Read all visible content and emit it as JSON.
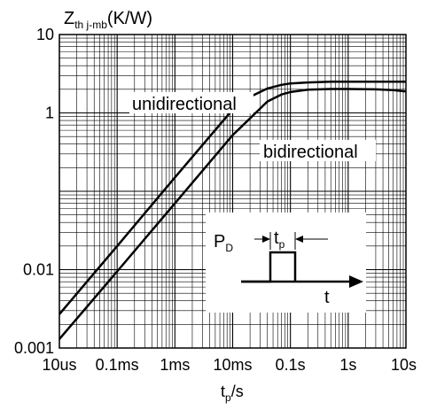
{
  "chart_data": {
    "type": "line",
    "y_axis_title": {
      "main": "Z",
      "sub": "th j-mb",
      "unit": "(K/W)"
    },
    "x_axis_title": {
      "main": "t",
      "sub": "p",
      "unit": "/s"
    },
    "x_scale": "log",
    "y_scale": "log",
    "xlim": [
      1e-05,
      10
    ],
    "ylim": [
      0.001,
      10
    ],
    "grid": true,
    "x_ticks": [
      {
        "value": 1e-05,
        "label": "10us"
      },
      {
        "value": 0.0001,
        "label": "0.1ms"
      },
      {
        "value": 0.001,
        "label": "1ms"
      },
      {
        "value": 0.01,
        "label": "10ms"
      },
      {
        "value": 0.1,
        "label": "0.1s"
      },
      {
        "value": 1,
        "label": "1s"
      },
      {
        "value": 10,
        "label": "10s"
      }
    ],
    "y_ticks": [
      {
        "value": 10,
        "label": "10"
      },
      {
        "value": 1,
        "label": "1"
      },
      {
        "value": 0.01,
        "label": "0.01"
      },
      {
        "value": 0.001,
        "label": "0.001"
      }
    ],
    "series": [
      {
        "name": "unidirectional",
        "x": [
          1e-05,
          0.0001,
          0.001,
          0.01,
          0.02,
          0.04,
          0.07,
          0.1,
          0.2,
          0.5,
          1,
          3,
          10
        ],
        "y": [
          0.0027,
          0.02,
          0.15,
          1.1,
          1.6,
          2.05,
          2.28,
          2.38,
          2.45,
          2.5,
          2.5,
          2.5,
          2.5
        ]
      },
      {
        "name": "bidirectional",
        "x": [
          1e-05,
          0.0001,
          0.001,
          0.01,
          0.02,
          0.04,
          0.07,
          0.1,
          0.2,
          0.5,
          1,
          3,
          6,
          10
        ],
        "y": [
          0.0013,
          0.0095,
          0.07,
          0.52,
          0.85,
          1.4,
          1.72,
          1.85,
          1.98,
          2.02,
          2.02,
          2.0,
          1.95,
          1.88
        ]
      }
    ],
    "series_labels": [
      "unidirectional",
      "bidirectional"
    ],
    "inset": {
      "signal_label": {
        "main": "P",
        "sub": "D"
      },
      "pulse_label": {
        "main": "t",
        "sub": "p"
      },
      "time_label": "t"
    }
  }
}
